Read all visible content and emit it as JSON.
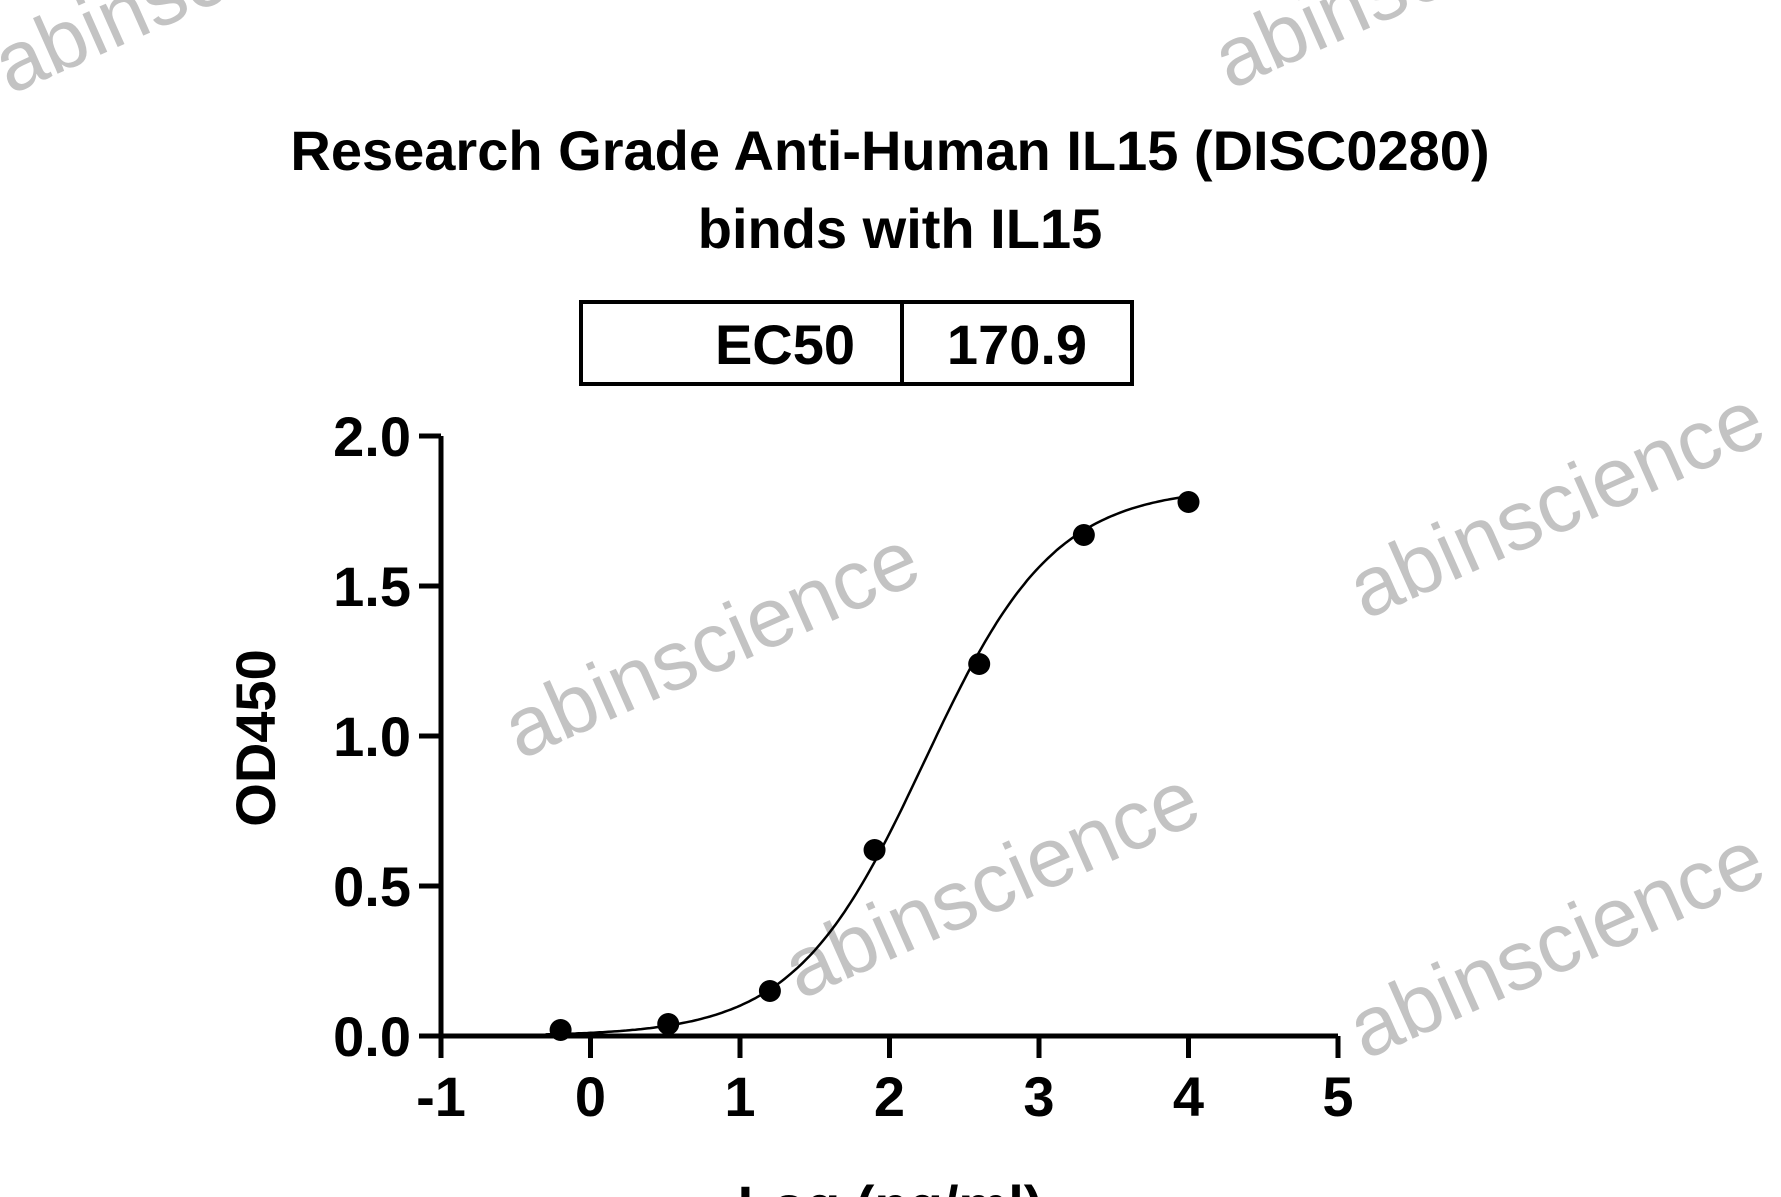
{
  "watermark": "abinscience",
  "chart_data": {
    "type": "scatter",
    "title": [
      "Research Grade Anti-Human IL15 (DISC0280)",
      "binds with IL15"
    ],
    "xlabel": "Log (ng/ml)",
    "ylabel": "OD450",
    "xlim": [
      -1,
      5
    ],
    "ylim": [
      0,
      2.0
    ],
    "xticks": [
      "-1",
      "0",
      "1",
      "2",
      "3",
      "4",
      "5"
    ],
    "yticks": [
      "0.0",
      "0.5",
      "1.0",
      "1.5",
      "2.0"
    ],
    "grid": false,
    "table": {
      "label": "EC50",
      "value": "170.9"
    },
    "points": [
      {
        "x": -0.2,
        "y": 0.02
      },
      {
        "x": 0.52,
        "y": 0.04
      },
      {
        "x": 1.2,
        "y": 0.15
      },
      {
        "x": 1.9,
        "y": 0.62
      },
      {
        "x": 2.6,
        "y": 1.24
      },
      {
        "x": 3.3,
        "y": 1.67
      },
      {
        "x": 4.0,
        "y": 1.78
      }
    ],
    "fit": {
      "model": "4PL",
      "bottom": 0,
      "top": 1.83,
      "logEC50": 2.233,
      "hill": 1.0
    },
    "colors": {
      "points": "#000000",
      "curve": "#000000",
      "watermark": "#bdbdbd"
    }
  }
}
